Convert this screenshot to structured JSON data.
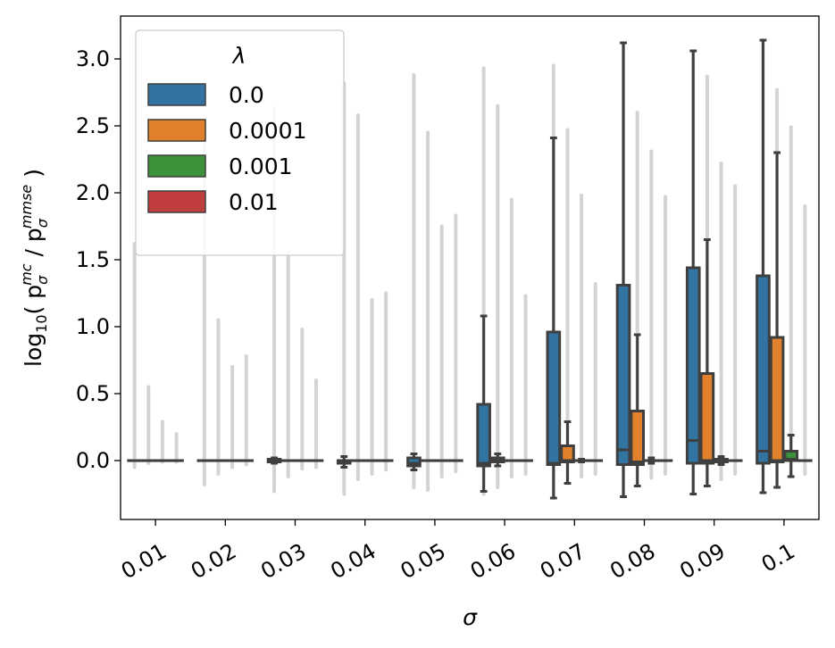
{
  "chart_data": {
    "type": "boxplot",
    "xlabel": "σ",
    "ylabel_main": "log",
    "ylabel_sub": "10",
    "ylabel_rest": "( p",
    "ylabel_num_sub": "σ",
    "ylabel_num_sup": "mc",
    "ylabel_mid": " / p",
    "ylabel_den_sub": "σ",
    "ylabel_den_sup": "mmse",
    "ylabel_close": " )",
    "ylim": [
      -0.44,
      3.33
    ],
    "yticks": [
      "0.0",
      "0.5",
      "1.0",
      "1.5",
      "2.0",
      "2.5",
      "3.0"
    ],
    "categories": [
      "0.01",
      "0.02",
      "0.03",
      "0.04",
      "0.05",
      "0.06",
      "0.07",
      "0.08",
      "0.09",
      "0.1"
    ],
    "legend": {
      "title": "λ",
      "placement": "upper-left"
    },
    "series": [
      {
        "name": "0.0",
        "color": "#3274a1",
        "boxes": [
          {
            "q1": 0.0,
            "med": 0.0,
            "q3": 0.0,
            "wlo": 0.0,
            "whi": 0.0,
            "fmax": 1.62,
            "fmin": -0.05
          },
          {
            "q1": 0.0,
            "med": 0.0,
            "q3": 0.0,
            "wlo": 0.0,
            "whi": 0.0,
            "fmax": 2.45,
            "fmin": -0.18
          },
          {
            "q1": -0.01,
            "med": 0.0,
            "q3": 0.01,
            "wlo": -0.02,
            "whi": 0.02,
            "fmax": 2.63,
            "fmin": -0.23
          },
          {
            "q1": -0.02,
            "med": -0.01,
            "q3": 0.0,
            "wlo": -0.05,
            "whi": 0.03,
            "fmax": 2.82,
            "fmin": -0.25
          },
          {
            "q1": -0.04,
            "med": -0.02,
            "q3": 0.02,
            "wlo": -0.07,
            "whi": 0.05,
            "fmax": 2.88,
            "fmin": -0.2
          },
          {
            "q1": -0.04,
            "med": -0.02,
            "q3": 0.42,
            "wlo": -0.23,
            "whi": 1.08,
            "fmax": 2.93,
            "fmin": -0.25
          },
          {
            "q1": -0.03,
            "med": -0.02,
            "q3": 0.96,
            "wlo": -0.28,
            "whi": 2.41,
            "fmax": 2.95,
            "fmin": -0.28
          },
          {
            "q1": -0.03,
            "med": 0.08,
            "q3": 1.31,
            "wlo": -0.27,
            "whi": 3.12,
            "fmax": 3.12,
            "fmin": -0.27
          },
          {
            "q1": -0.02,
            "med": 0.15,
            "q3": 1.44,
            "wlo": -0.25,
            "whi": 3.06,
            "fmax": 3.06,
            "fmin": -0.25
          },
          {
            "q1": -0.02,
            "med": 0.07,
            "q3": 1.38,
            "wlo": -0.24,
            "whi": 3.14,
            "fmax": 3.14,
            "fmin": -0.24
          }
        ]
      },
      {
        "name": "0.0001",
        "color": "#e1812c",
        "boxes": [
          {
            "q1": 0.0,
            "med": 0.0,
            "q3": 0.0,
            "wlo": 0.0,
            "whi": 0.0,
            "fmax": 0.55,
            "fmin": -0.02
          },
          {
            "q1": 0.0,
            "med": 0.0,
            "q3": 0.0,
            "wlo": 0.0,
            "whi": 0.0,
            "fmax": 1.05,
            "fmin": -0.1
          },
          {
            "q1": 0.0,
            "med": 0.0,
            "q3": 0.0,
            "wlo": 0.0,
            "whi": 0.0,
            "fmax": 1.55,
            "fmin": -0.12
          },
          {
            "q1": 0.0,
            "med": 0.0,
            "q3": 0.0,
            "wlo": 0.0,
            "whi": 0.0,
            "fmax": 2.58,
            "fmin": -0.14
          },
          {
            "q1": 0.0,
            "med": 0.0,
            "q3": 0.0,
            "wlo": 0.0,
            "whi": 0.0,
            "fmax": 2.45,
            "fmin": -0.22
          },
          {
            "q1": -0.01,
            "med": 0.0,
            "q3": 0.02,
            "wlo": -0.04,
            "whi": 0.05,
            "fmax": 2.65,
            "fmin": -0.2
          },
          {
            "q1": -0.01,
            "med": 0.0,
            "q3": 0.11,
            "wlo": -0.17,
            "whi": 0.29,
            "fmax": 2.47,
            "fmin": -0.17
          },
          {
            "q1": -0.03,
            "med": -0.01,
            "q3": 0.37,
            "wlo": -0.19,
            "whi": 0.94,
            "fmax": 2.6,
            "fmin": -0.19
          },
          {
            "q1": -0.02,
            "med": 0.0,
            "q3": 0.65,
            "wlo": -0.19,
            "whi": 1.65,
            "fmax": 2.87,
            "fmin": -0.19
          },
          {
            "q1": -0.01,
            "med": 0.0,
            "q3": 0.92,
            "wlo": -0.2,
            "whi": 2.3,
            "fmax": 2.77,
            "fmin": -0.2
          }
        ]
      },
      {
        "name": "0.001",
        "color": "#3a923a",
        "boxes": [
          {
            "q1": 0.0,
            "med": 0.0,
            "q3": 0.0,
            "wlo": 0.0,
            "whi": 0.0,
            "fmax": 0.29,
            "fmin": -0.01
          },
          {
            "q1": 0.0,
            "med": 0.0,
            "q3": 0.0,
            "wlo": 0.0,
            "whi": 0.0,
            "fmax": 0.7,
            "fmin": -0.05
          },
          {
            "q1": 0.0,
            "med": 0.0,
            "q3": 0.0,
            "wlo": 0.0,
            "whi": 0.0,
            "fmax": 0.98,
            "fmin": -0.06
          },
          {
            "q1": 0.0,
            "med": 0.0,
            "q3": 0.0,
            "wlo": 0.0,
            "whi": 0.0,
            "fmax": 1.2,
            "fmin": -0.1
          },
          {
            "q1": 0.0,
            "med": 0.0,
            "q3": 0.0,
            "wlo": 0.0,
            "whi": 0.0,
            "fmax": 1.75,
            "fmin": -0.12
          },
          {
            "q1": 0.0,
            "med": 0.0,
            "q3": 0.0,
            "wlo": 0.0,
            "whi": 0.0,
            "fmax": 1.95,
            "fmin": -0.12
          },
          {
            "q1": 0.0,
            "med": 0.0,
            "q3": 0.0,
            "wlo": -0.01,
            "whi": 0.01,
            "fmax": 1.98,
            "fmin": -0.12
          },
          {
            "q1": 0.0,
            "med": 0.0,
            "q3": 0.0,
            "wlo": -0.02,
            "whi": 0.02,
            "fmax": 2.31,
            "fmin": -0.13
          },
          {
            "q1": -0.01,
            "med": 0.0,
            "q3": 0.01,
            "wlo": -0.03,
            "whi": 0.03,
            "fmax": 2.22,
            "fmin": -0.14
          },
          {
            "q1": 0.0,
            "med": 0.01,
            "q3": 0.07,
            "wlo": -0.12,
            "whi": 0.19,
            "fmax": 2.49,
            "fmin": -0.12
          }
        ]
      },
      {
        "name": "0.01",
        "color": "#c03d3e",
        "boxes": [
          {
            "q1": 0.0,
            "med": 0.0,
            "q3": 0.0,
            "wlo": 0.0,
            "whi": 0.0,
            "fmax": 0.2,
            "fmin": -0.01
          },
          {
            "q1": 0.0,
            "med": 0.0,
            "q3": 0.0,
            "wlo": 0.0,
            "whi": 0.0,
            "fmax": 0.78,
            "fmin": -0.03
          },
          {
            "q1": 0.0,
            "med": 0.0,
            "q3": 0.0,
            "wlo": 0.0,
            "whi": 0.0,
            "fmax": 0.6,
            "fmin": -0.05
          },
          {
            "q1": 0.0,
            "med": 0.0,
            "q3": 0.0,
            "wlo": 0.0,
            "whi": 0.0,
            "fmax": 1.25,
            "fmin": -0.07
          },
          {
            "q1": 0.0,
            "med": 0.0,
            "q3": 0.0,
            "wlo": 0.0,
            "whi": 0.0,
            "fmax": 1.83,
            "fmin": -0.08
          },
          {
            "q1": 0.0,
            "med": 0.0,
            "q3": 0.0,
            "wlo": 0.0,
            "whi": 0.0,
            "fmax": 1.23,
            "fmin": -0.1
          },
          {
            "q1": 0.0,
            "med": 0.0,
            "q3": 0.0,
            "wlo": 0.0,
            "whi": 0.0,
            "fmax": 1.32,
            "fmin": -0.1
          },
          {
            "q1": 0.0,
            "med": 0.0,
            "q3": 0.0,
            "wlo": 0.0,
            "whi": 0.0,
            "fmax": 1.97,
            "fmin": -0.1
          },
          {
            "q1": 0.0,
            "med": 0.0,
            "q3": 0.0,
            "wlo": 0.0,
            "whi": 0.0,
            "fmax": 2.05,
            "fmin": -0.1
          },
          {
            "q1": 0.0,
            "med": 0.0,
            "q3": 0.0,
            "wlo": 0.0,
            "whi": 0.0,
            "fmax": 1.9,
            "fmin": -0.1
          }
        ]
      }
    ],
    "flier_color": "#d3d3d3",
    "line_color": "#3f3f3f"
  }
}
